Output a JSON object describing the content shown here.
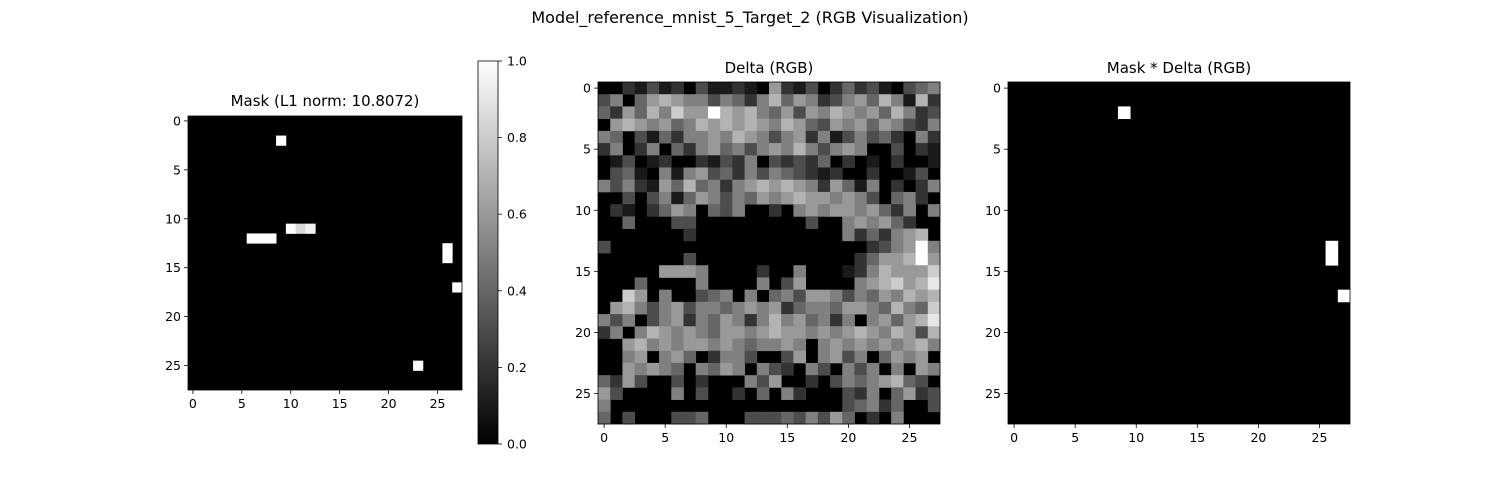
{
  "title": "Model_reference_mnist_5_Target_2 (RGB Visualization)",
  "chart_data": [
    {
      "type": "heatmap",
      "title": "Mask (L1 norm: 10.8072)",
      "grid_size": 28,
      "colormap": "gray",
      "value_range": [
        0,
        1
      ],
      "x_ticks": [
        0,
        5,
        10,
        15,
        20,
        25
      ],
      "y_ticks": [
        0,
        5,
        10,
        15,
        20,
        25
      ],
      "grid": false,
      "cells": [
        {
          "row": 2,
          "col": 9,
          "value": 1.0
        },
        {
          "row": 11,
          "col": 10,
          "value": 1.0
        },
        {
          "row": 11,
          "col": 11,
          "value": 0.85
        },
        {
          "row": 11,
          "col": 12,
          "value": 0.95
        },
        {
          "row": 12,
          "col": 6,
          "value": 1.0
        },
        {
          "row": 12,
          "col": 7,
          "value": 1.0
        },
        {
          "row": 12,
          "col": 8,
          "value": 1.0
        },
        {
          "row": 13,
          "col": 26,
          "value": 1.0
        },
        {
          "row": 14,
          "col": 26,
          "value": 1.0
        },
        {
          "row": 17,
          "col": 27,
          "value": 1.0
        },
        {
          "row": 25,
          "col": 23,
          "value": 1.0
        }
      ]
    },
    {
      "type": "heatmap",
      "title": "Delta (RGB)",
      "grid_size": 28,
      "colormap": "gray",
      "x_ticks": [
        0,
        5,
        10,
        15,
        20,
        25
      ],
      "y_ticks": [
        0,
        5,
        10,
        15,
        20,
        25
      ],
      "grid": false,
      "matrix": [
        [
          0.0,
          0.0,
          0.2,
          0.1,
          0.3,
          0.1,
          0.2,
          0.0,
          0.3,
          0.1,
          0.1,
          0.2,
          0.1,
          0.0,
          0.6,
          0.2,
          0.1,
          0.3,
          0.0,
          0.2,
          0.4,
          0.2,
          0.3,
          0.1,
          0.0,
          0.3,
          0.4,
          0.5
        ],
        [
          0.3,
          0.5,
          0.0,
          0.4,
          0.6,
          0.7,
          0.6,
          0.5,
          0.5,
          0.3,
          0.5,
          0.4,
          0.2,
          0.5,
          0.7,
          0.4,
          0.6,
          0.5,
          0.2,
          0.3,
          0.5,
          0.6,
          0.4,
          0.7,
          0.5,
          0.1,
          0.7,
          0.2
        ],
        [
          0.4,
          0.2,
          0.6,
          0.4,
          0.7,
          0.5,
          0.8,
          0.6,
          0.6,
          1.0,
          0.7,
          0.6,
          0.7,
          0.5,
          0.4,
          0.6,
          0.3,
          0.6,
          0.5,
          0.7,
          0.6,
          0.5,
          0.6,
          0.4,
          0.7,
          0.5,
          0.2,
          0.3
        ],
        [
          0.0,
          0.6,
          0.7,
          0.6,
          0.5,
          0.6,
          0.4,
          0.5,
          0.7,
          0.6,
          0.7,
          0.6,
          0.7,
          0.6,
          0.5,
          0.7,
          0.6,
          0.4,
          0.3,
          0.6,
          0.5,
          0.6,
          0.4,
          0.6,
          0.5,
          0.3,
          0.2,
          0.5
        ],
        [
          0.5,
          0.4,
          0.0,
          0.3,
          0.1,
          0.4,
          0.2,
          0.5,
          0.5,
          0.6,
          0.5,
          0.7,
          0.6,
          0.5,
          0.3,
          0.5,
          0.6,
          0.2,
          0.5,
          0.1,
          0.3,
          0.5,
          0.3,
          0.4,
          0.2,
          0.0,
          0.5,
          0.2
        ],
        [
          0.2,
          0.5,
          0.0,
          0.2,
          0.5,
          0.0,
          0.4,
          0.2,
          0.5,
          0.6,
          0.4,
          0.5,
          0.3,
          0.5,
          0.6,
          0.5,
          0.7,
          0.5,
          0.3,
          0.5,
          0.6,
          0.5,
          0.0,
          0.0,
          0.3,
          0.0,
          0.2,
          0.1
        ],
        [
          0.0,
          0.1,
          0.3,
          0.0,
          0.1,
          0.2,
          0.0,
          0.0,
          0.2,
          0.1,
          0.3,
          0.2,
          0.5,
          0.0,
          0.3,
          0.2,
          0.3,
          0.2,
          0.4,
          0.0,
          0.2,
          0.0,
          0.1,
          0.0,
          0.2,
          0.0,
          0.0,
          0.1
        ],
        [
          0.0,
          0.3,
          0.4,
          0.1,
          0.0,
          0.5,
          0.1,
          0.5,
          0.6,
          0.3,
          0.4,
          0.2,
          0.5,
          0.3,
          0.5,
          0.4,
          0.3,
          0.2,
          0.1,
          0.2,
          0.0,
          0.0,
          0.2,
          0.0,
          0.0,
          0.1,
          0.3,
          0.0
        ],
        [
          0.5,
          0.3,
          0.5,
          0.2,
          0.1,
          0.6,
          0.4,
          0.7,
          0.4,
          0.5,
          0.2,
          0.5,
          0.6,
          0.7,
          0.6,
          0.7,
          0.6,
          0.5,
          0.2,
          0.6,
          0.4,
          0.1,
          0.5,
          0.0,
          0.2,
          0.0,
          0.2,
          0.5
        ],
        [
          0.0,
          0.0,
          0.3,
          0.0,
          0.3,
          0.5,
          0.1,
          0.4,
          0.6,
          0.5,
          0.3,
          0.5,
          0.4,
          0.6,
          0.5,
          0.6,
          0.7,
          0.6,
          0.6,
          0.5,
          0.6,
          0.5,
          0.3,
          0.0,
          0.4,
          0.5,
          0.2,
          0.0
        ],
        [
          0.0,
          0.2,
          0.1,
          0.0,
          0.2,
          0.4,
          0.6,
          0.5,
          0.0,
          0.4,
          0.3,
          0.5,
          0.0,
          0.0,
          0.2,
          0.0,
          0.5,
          0.6,
          0.5,
          0.6,
          0.6,
          0.5,
          0.6,
          0.4,
          0.2,
          0.5,
          0.0,
          0.5
        ],
        [
          0.0,
          0.0,
          0.4,
          0.0,
          0.0,
          0.0,
          0.3,
          0.3,
          0.0,
          0.0,
          0.0,
          0.0,
          0.0,
          0.0,
          0.0,
          0.0,
          0.0,
          0.3,
          0.0,
          0.0,
          0.5,
          0.6,
          0.5,
          0.6,
          0.4,
          0.2,
          0.0,
          0.0
        ],
        [
          0.0,
          0.0,
          0.0,
          0.0,
          0.0,
          0.0,
          0.0,
          0.2,
          0.0,
          0.0,
          0.0,
          0.0,
          0.0,
          0.0,
          0.0,
          0.0,
          0.0,
          0.0,
          0.0,
          0.0,
          0.5,
          0.2,
          0.4,
          0.2,
          0.5,
          0.6,
          0.7,
          0.0
        ],
        [
          0.3,
          0.0,
          0.0,
          0.0,
          0.0,
          0.0,
          0.0,
          0.0,
          0.0,
          0.0,
          0.0,
          0.0,
          0.0,
          0.0,
          0.0,
          0.0,
          0.0,
          0.0,
          0.0,
          0.0,
          0.0,
          0.0,
          0.2,
          0.3,
          0.5,
          0.6,
          1.0,
          0.5
        ],
        [
          0.0,
          0.0,
          0.0,
          0.0,
          0.0,
          0.0,
          0.0,
          0.3,
          0.0,
          0.0,
          0.0,
          0.0,
          0.0,
          0.0,
          0.0,
          0.0,
          0.0,
          0.0,
          0.0,
          0.0,
          0.0,
          0.2,
          0.4,
          0.6,
          0.6,
          0.7,
          1.0,
          0.6
        ],
        [
          0.0,
          0.0,
          0.0,
          0.0,
          0.0,
          0.6,
          0.6,
          0.6,
          0.5,
          0.0,
          0.0,
          0.0,
          0.0,
          0.2,
          0.0,
          0.0,
          0.5,
          0.0,
          0.0,
          0.0,
          0.1,
          0.2,
          0.5,
          0.7,
          0.6,
          0.6,
          0.6,
          0.8
        ],
        [
          0.0,
          0.0,
          0.0,
          0.4,
          0.0,
          0.0,
          0.0,
          0.0,
          0.5,
          0.0,
          0.0,
          0.0,
          0.0,
          0.5,
          0.0,
          0.3,
          0.6,
          0.0,
          0.0,
          0.0,
          0.0,
          0.5,
          0.6,
          0.7,
          0.8,
          0.6,
          0.7,
          0.9
        ],
        [
          0.0,
          0.0,
          0.8,
          0.6,
          0.0,
          0.5,
          0.0,
          0.0,
          0.3,
          0.4,
          0.5,
          0.0,
          0.5,
          0.0,
          0.4,
          0.5,
          0.3,
          0.6,
          0.6,
          0.5,
          0.3,
          0.5,
          0.4,
          0.6,
          0.5,
          0.7,
          0.6,
          0.7
        ],
        [
          0.0,
          0.6,
          0.7,
          0.5,
          0.3,
          0.5,
          0.6,
          0.3,
          0.5,
          0.5,
          0.4,
          0.5,
          0.6,
          0.5,
          0.6,
          0.2,
          0.4,
          0.5,
          0.5,
          0.4,
          0.6,
          0.6,
          0.5,
          0.4,
          0.7,
          0.5,
          0.4,
          0.8
        ],
        [
          0.5,
          0.3,
          0.5,
          0.0,
          0.3,
          0.5,
          0.6,
          0.2,
          0.5,
          0.4,
          0.6,
          0.5,
          0.2,
          0.5,
          0.7,
          0.5,
          0.6,
          0.4,
          0.5,
          0.2,
          0.5,
          0.0,
          0.5,
          0.6,
          0.4,
          0.6,
          0.7,
          0.9
        ],
        [
          0.2,
          0.5,
          0.0,
          0.5,
          0.7,
          0.6,
          0.5,
          0.6,
          0.5,
          0.4,
          0.6,
          0.6,
          0.5,
          0.6,
          0.7,
          0.6,
          0.6,
          0.5,
          0.6,
          0.5,
          0.6,
          0.7,
          0.6,
          0.5,
          0.7,
          0.6,
          0.3,
          0.7
        ],
        [
          0.0,
          0.0,
          0.6,
          0.7,
          0.5,
          0.6,
          0.5,
          0.6,
          0.6,
          0.5,
          0.6,
          0.5,
          0.4,
          0.5,
          0.5,
          0.6,
          0.5,
          0.0,
          0.5,
          0.6,
          0.5,
          0.6,
          0.5,
          0.6,
          0.5,
          0.6,
          0.7,
          0.5
        ],
        [
          0.0,
          0.0,
          0.5,
          0.6,
          0.0,
          0.5,
          0.6,
          0.4,
          0.0,
          0.2,
          0.5,
          0.5,
          0.3,
          0.0,
          0.0,
          0.3,
          0.6,
          0.0,
          0.5,
          0.6,
          0.3,
          0.5,
          0.0,
          0.4,
          0.6,
          0.5,
          0.6,
          0.0
        ],
        [
          0.0,
          0.0,
          0.6,
          0.5,
          0.6,
          0.5,
          0.4,
          0.0,
          0.5,
          0.4,
          0.6,
          0.5,
          0.0,
          0.5,
          0.3,
          0.2,
          0.0,
          0.5,
          0.3,
          0.0,
          0.5,
          0.3,
          0.5,
          0.0,
          0.5,
          0.0,
          0.6,
          0.5
        ],
        [
          0.4,
          0.2,
          0.6,
          0.3,
          0.0,
          0.0,
          0.3,
          0.0,
          0.2,
          0.0,
          0.0,
          0.0,
          0.5,
          0.3,
          0.6,
          0.0,
          0.0,
          0.2,
          0.0,
          0.3,
          0.5,
          0.4,
          0.5,
          0.6,
          0.7,
          0.4,
          0.3,
          0.0
        ],
        [
          0.6,
          0.3,
          0.0,
          0.0,
          0.0,
          0.0,
          0.5,
          0.0,
          0.3,
          0.0,
          0.0,
          0.2,
          0.0,
          0.4,
          0.0,
          0.5,
          0.2,
          0.0,
          0.0,
          0.0,
          0.3,
          0.2,
          0.5,
          0.0,
          0.4,
          0.6,
          0.2,
          0.3
        ],
        [
          0.5,
          0.0,
          0.0,
          0.0,
          0.0,
          0.0,
          0.0,
          0.0,
          0.0,
          0.0,
          0.0,
          0.0,
          0.0,
          0.0,
          0.0,
          0.0,
          0.0,
          0.0,
          0.0,
          0.0,
          0.3,
          0.4,
          0.5,
          0.2,
          0.4,
          0.0,
          0.0,
          0.3
        ],
        [
          0.4,
          0.0,
          0.3,
          0.0,
          0.0,
          0.0,
          0.3,
          0.3,
          0.4,
          0.0,
          0.0,
          0.0,
          0.3,
          0.3,
          0.3,
          0.4,
          0.3,
          0.5,
          0.3,
          0.6,
          0.4,
          0.0,
          0.2,
          0.0,
          0.5,
          0.0,
          0.0,
          0.0
        ]
      ]
    },
    {
      "type": "heatmap",
      "title": "Mask * Delta (RGB)",
      "grid_size": 28,
      "colormap": "gray",
      "x_ticks": [
        0,
        5,
        10,
        15,
        20,
        25
      ],
      "y_ticks": [
        0,
        5,
        10,
        15,
        20,
        25
      ],
      "grid": false,
      "cells": [
        {
          "row": 2,
          "col": 9,
          "value": 1.0
        },
        {
          "row": 13,
          "col": 26,
          "value": 1.0
        },
        {
          "row": 14,
          "col": 26,
          "value": 1.0
        },
        {
          "row": 17,
          "col": 27,
          "value": 1.0
        }
      ]
    }
  ],
  "colorbar": {
    "range": [
      0,
      1
    ],
    "ticks": [
      "0.0",
      "0.2",
      "0.4",
      "0.6",
      "0.8",
      "1.0"
    ]
  }
}
